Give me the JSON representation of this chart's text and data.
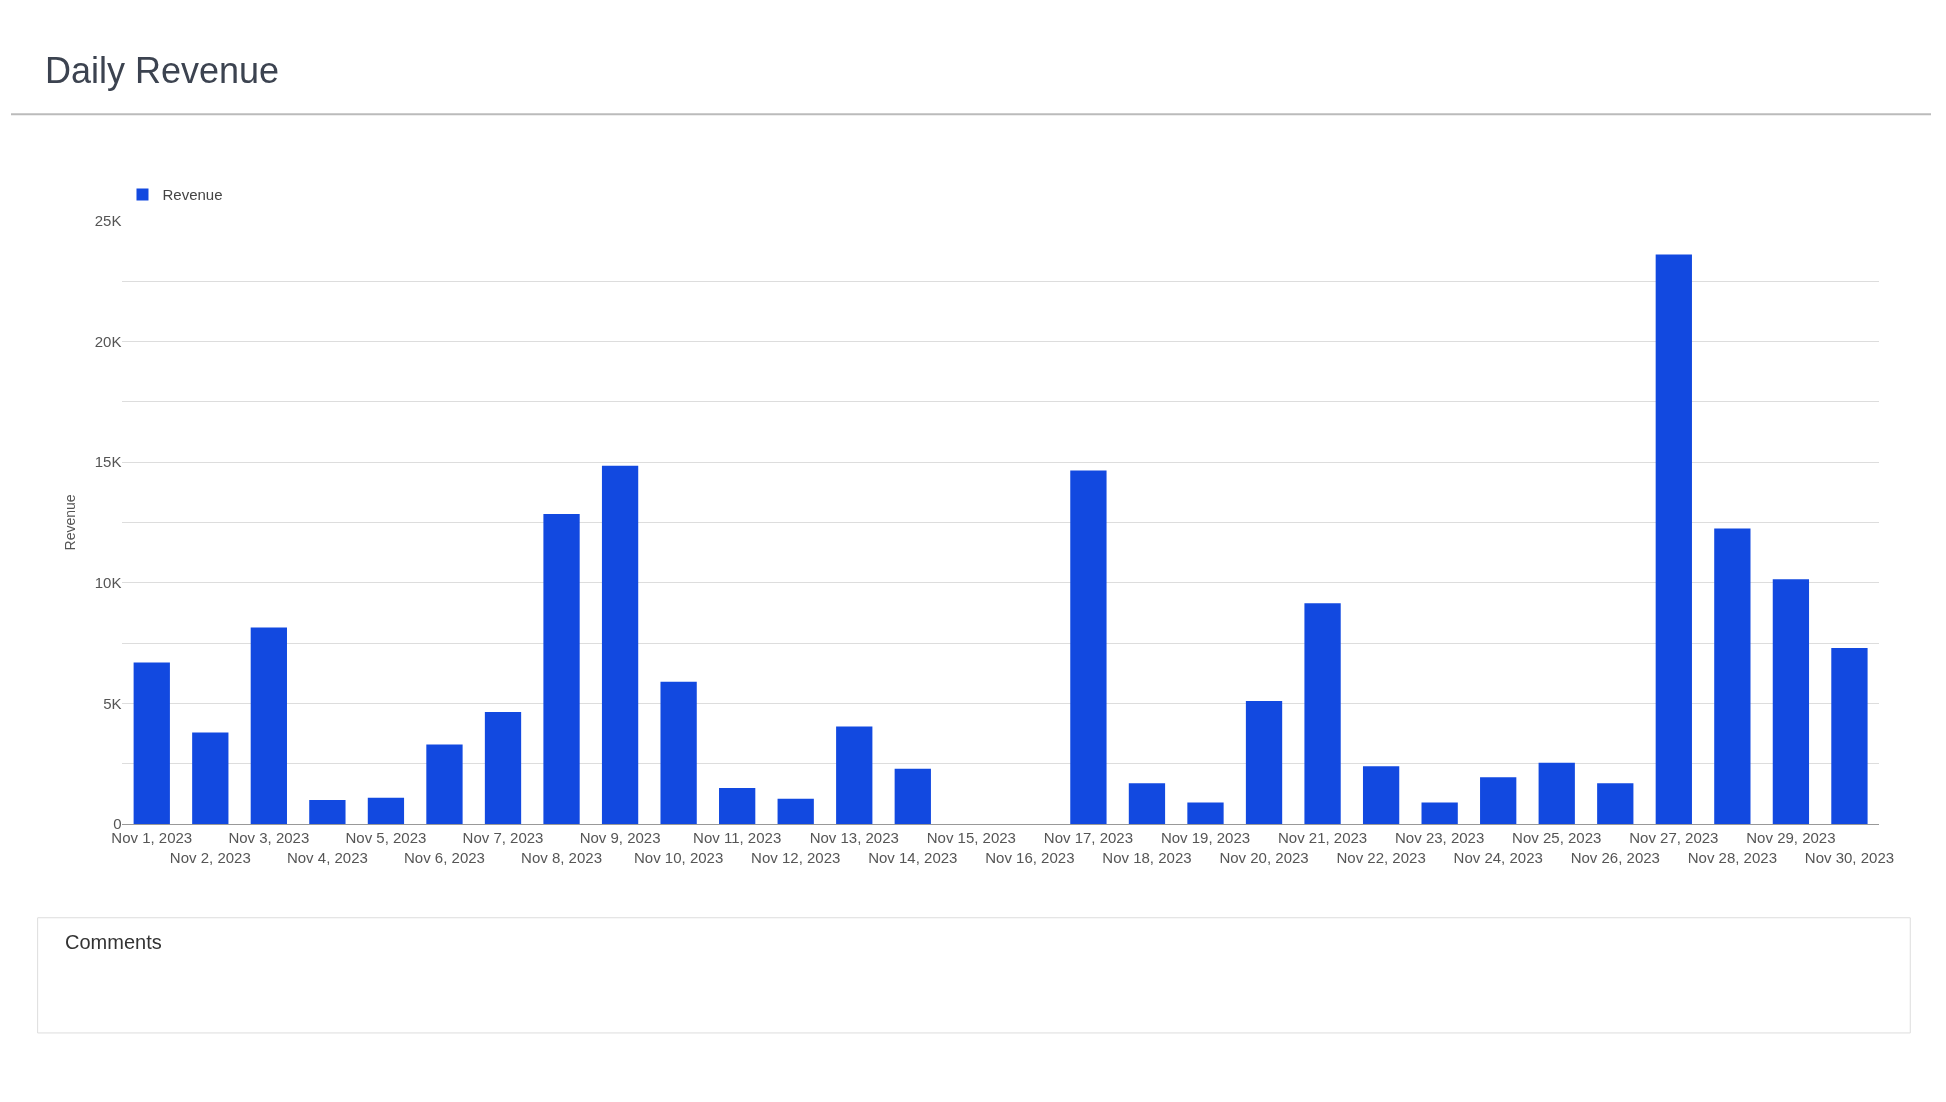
{
  "chart_data": {
    "type": "bar",
    "title": "Daily Revenue",
    "ylabel": "Revenue",
    "categories": [
      "Nov 1, 2023",
      "Nov 2, 2023",
      "Nov 3, 2023",
      "Nov 4, 2023",
      "Nov 5, 2023",
      "Nov 6, 2023",
      "Nov 7, 2023",
      "Nov 8, 2023",
      "Nov 9, 2023",
      "Nov 10, 2023",
      "Nov 11, 2023",
      "Nov 12, 2023",
      "Nov 13, 2023",
      "Nov 14, 2023",
      "Nov 15, 2023",
      "Nov 16, 2023",
      "Nov 17, 2023",
      "Nov 18, 2023",
      "Nov 19, 2023",
      "Nov 20, 2023",
      "Nov 21, 2023",
      "Nov 22, 2023",
      "Nov 23, 2023",
      "Nov 24, 2023",
      "Nov 25, 2023",
      "Nov 26, 2023",
      "Nov 27, 2023",
      "Nov 28, 2023",
      "Nov 29, 2023",
      "Nov 30, 2023"
    ],
    "series": [
      {
        "name": "Revenue",
        "color": "#1249e0",
        "values": [
          6700,
          3800,
          8150,
          1000,
          1100,
          3300,
          4650,
          12850,
          14850,
          5900,
          1500,
          1050,
          4050,
          2300,
          0,
          0,
          14650,
          1700,
          900,
          5100,
          9150,
          2400,
          900,
          1950,
          2550,
          1700,
          23600,
          12250,
          10150,
          7300
        ]
      }
    ],
    "ylim": [
      0,
      25000
    ],
    "yticks": [
      0,
      {
        "value": 2500,
        "label": null
      },
      {
        "value": 5000,
        "label": "5K"
      },
      {
        "value": 7500,
        "label": null
      },
      {
        "value": 10000,
        "label": "10K"
      },
      {
        "value": 12500,
        "label": null
      },
      {
        "value": 15000,
        "label": "15K"
      },
      {
        "value": 17500,
        "label": null
      },
      {
        "value": 20000,
        "label": "20K"
      },
      {
        "value": 22500,
        "label": null
      },
      {
        "value": 25000,
        "label": "25K"
      }
    ],
    "grid": "y",
    "legend": "top left",
    "annotations": [
      "Comments"
    ]
  }
}
